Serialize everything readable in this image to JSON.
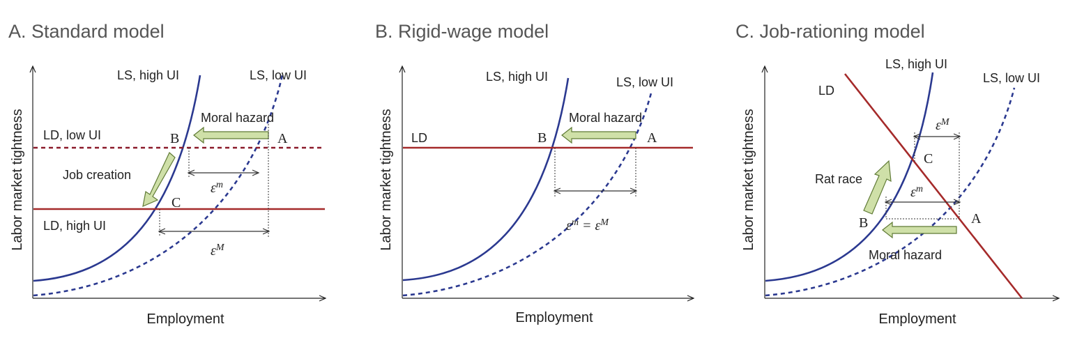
{
  "panels": [
    {
      "title": "A. Standard model",
      "ylabel": "Labor market tightness",
      "xlabel": "Employment",
      "ls_high": "LS, high UI",
      "ls_low": "LS, low UI",
      "ld_low": "LD, low UI",
      "ld_high": "LD, high UI",
      "moral_hazard": "Moral hazard",
      "job_creation": "Job creation",
      "point_a": "A",
      "point_b": "B",
      "point_c": "C",
      "eps_m_base": "ε",
      "eps_m_sup": "m",
      "eps_M_base": "ε",
      "eps_M_sup": "M"
    },
    {
      "title": "B. Rigid-wage model",
      "ylabel": "Labor market tightness",
      "xlabel": "Employment",
      "ls_high": "LS,  high UI",
      "ls_low": "LS, low UI",
      "ld": "LD",
      "moral_hazard": "Moral hazard",
      "point_a": "A",
      "point_b": "B",
      "eps_eq_left": "ε",
      "eps_eq_left_sup": "m",
      "eps_eq_mid": " = ε",
      "eps_eq_right_sup": "M"
    },
    {
      "title": "C. Job-rationing model",
      "ylabel": "Labor market tightness",
      "xlabel": "Employment",
      "ls_high": "LS, high UI",
      "ls_low": "LS, low UI",
      "ld": "LD",
      "rat_race": "Rat race",
      "moral_hazard": "Moral hazard",
      "point_a": "A",
      "point_b": "B",
      "point_c": "C",
      "eps_M_base": "ε",
      "eps_M_sup": "M",
      "eps_m_base": "ε",
      "eps_m_sup": "m"
    }
  ],
  "colors": {
    "labor_supply": "#2b3990",
    "labor_demand": "#a52a2a",
    "arrow_fill": "#cfe0a8"
  }
}
